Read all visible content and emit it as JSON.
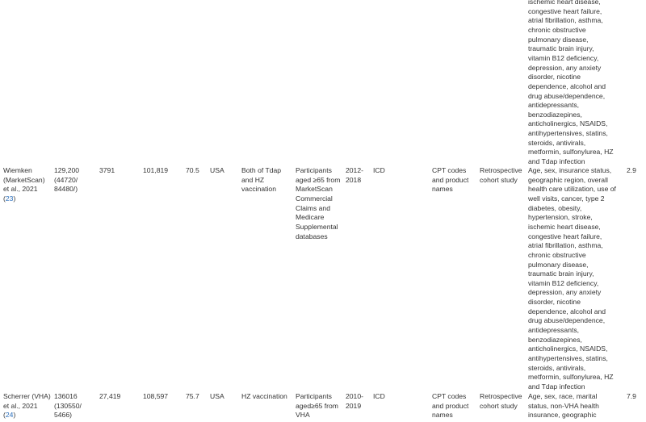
{
  "table": {
    "rows": [
      {
        "cells": [
          [],
          [],
          [],
          [],
          [],
          [],
          [],
          [],
          [],
          [],
          [],
          [],
          [
            "ischemic heart disease,",
            "congestive heart failure,",
            "atrial fibrillation, asthma,",
            "chronic obstructive",
            "pulmonary disease,",
            "traumatic brain injury,",
            "vitamin B12 deficiency,",
            "depression, any anxiety",
            "disorder, nicotine",
            "dependence, alcohol and",
            "drug abuse/dependence,",
            "antidepressants,",
            "benzodiazepines,",
            "anticholinergics, NSAIDS,",
            "antihypertensives, statins,",
            "steroids, antivirals,",
            "metformin, sulfonylurea, HZ",
            "and Tdap infection"
          ],
          []
        ]
      },
      {
        "ref": [
          "(",
          "23",
          ")"
        ],
        "cells": [
          [
            "Wiemken",
            "(MarketScan)",
            "et al., 2021"
          ],
          [
            "129,200",
            "(44720/",
            "84480/)"
          ],
          [
            "3791"
          ],
          [
            "101,819"
          ],
          [
            "70.5"
          ],
          [
            "USA"
          ],
          [
            "Both of Tdap",
            "and HZ",
            "vaccination"
          ],
          [
            "Participants",
            "aged ≥65 from",
            "MarketScan",
            "Commercial",
            "Claims and",
            "Medicare",
            "Supplemental",
            "databases"
          ],
          [
            "2012-",
            "2018"
          ],
          [
            "ICD"
          ],
          [
            "CPT codes",
            "and product",
            "names"
          ],
          [
            "Retrospective",
            "cohort study"
          ],
          [
            "Age, sex, insurance status,",
            "geographic region, overall",
            "health care utilization, use of",
            "well visits, cancer, type 2",
            "diabetes, obesity,",
            "hypertension, stroke,",
            "ischemic heart disease,",
            "congestive heart failure,",
            "atrial fibrillation, asthma,",
            "chronic obstructive",
            "pulmonary disease,",
            "traumatic brain injury,",
            "vitamin B12 deficiency,",
            "depression, any anxiety",
            "disorder, nicotine",
            "dependence, alcohol and",
            "drug abuse/dependence,",
            "antidepressants,",
            "benzodiazepines,",
            "anticholinergics, NSAIDS,",
            "antihypertensives, statins,",
            "steroids, antivirals,",
            "metformin, sulfonylurea, HZ",
            "and Tdap infection"
          ],
          [
            "2.9"
          ]
        ]
      },
      {
        "ref": [
          "(",
          "24",
          ")"
        ],
        "cells": [
          [
            "Scherrer (VHA)",
            "et al., 2021"
          ],
          [
            "136016",
            "(130550/",
            "5466)"
          ],
          [
            "27,419"
          ],
          [
            "108,597"
          ],
          [
            "75.7"
          ],
          [
            "USA"
          ],
          [
            "HZ vaccination"
          ],
          [
            "Participants",
            "aged≥65 from",
            "VHA"
          ],
          [
            "2010-",
            "2019"
          ],
          [
            "ICD"
          ],
          [
            "CPT codes",
            "and product",
            "names"
          ],
          [
            "Retrospective",
            "cohort study"
          ],
          [
            "Age, sex, race, marital",
            "status, non-VHA health",
            "insurance, geographic"
          ],
          [
            "7.9"
          ]
        ]
      }
    ]
  }
}
